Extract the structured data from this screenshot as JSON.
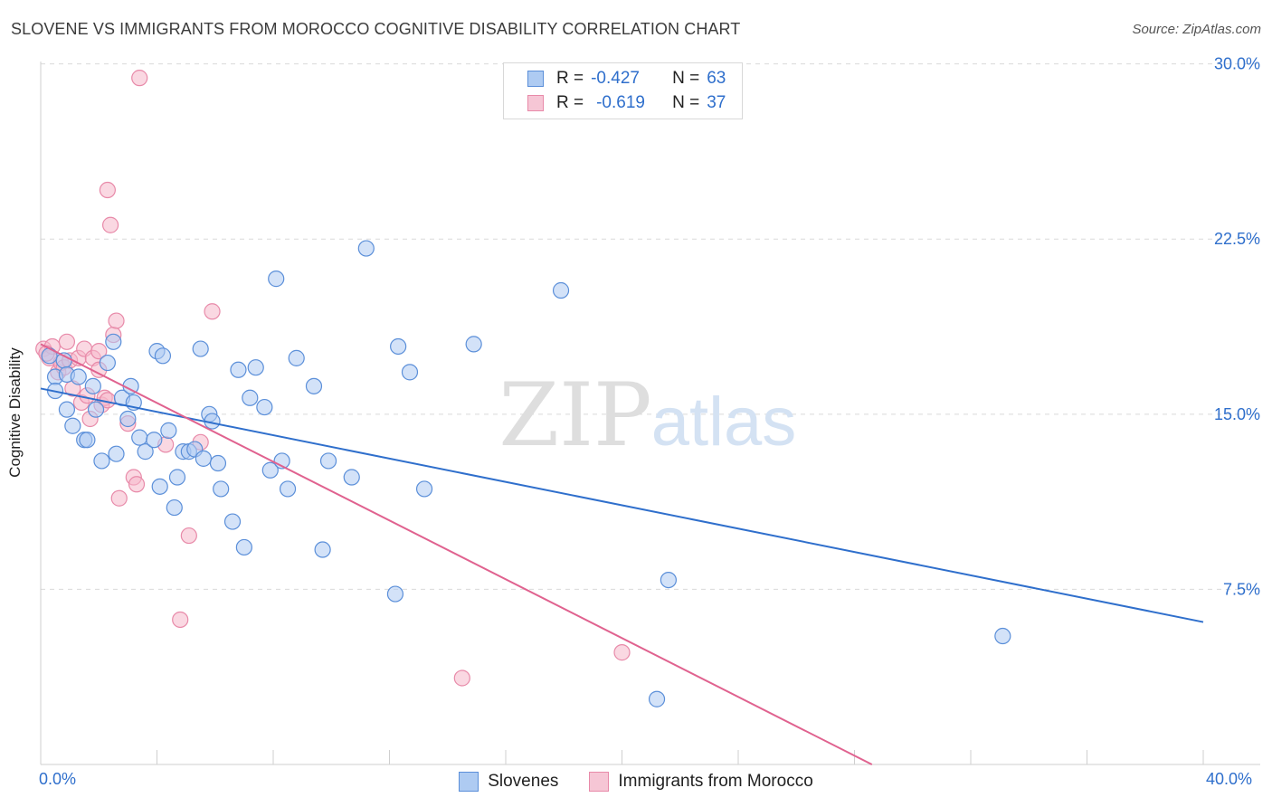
{
  "title": "SLOVENE VS IMMIGRANTS FROM MOROCCO COGNITIVE DISABILITY CORRELATION CHART",
  "source": "Source: ZipAtlas.com",
  "watermark": {
    "zip": "ZIP",
    "atlas": "atlas"
  },
  "colors": {
    "blue": "#2f6fcc",
    "blue_fill": "#aecbf2",
    "blue_stroke": "#5b8fd9",
    "pink": "#e0628f",
    "pink_fill": "#f6b8cb",
    "pink_stroke": "#e88aa9",
    "grid": "#d9d9d9",
    "axis_text": "#2f6fcc"
  },
  "legend": {
    "rows": [
      {
        "r_label": "R =",
        "r_value": "-0.427",
        "n_label": "N =",
        "n_value": "63",
        "series": "blue"
      },
      {
        "r_label": "R =",
        "r_value": "-0.619",
        "n_label": "N =",
        "n_value": "37",
        "series": "pink"
      }
    ]
  },
  "bottom_legend": [
    "Slovenes",
    "Immigrants from Morocco"
  ],
  "chart_data": {
    "type": "scatter",
    "title": "SLOVENE VS IMMIGRANTS FROM MOROCCO COGNITIVE DISABILITY CORRELATION CHART",
    "xlabel": "",
    "ylabel": "Cognitive Disability",
    "xlim": [
      0,
      40
    ],
    "ylim": [
      0,
      30.8
    ],
    "x_tick_labels": [
      "0.0%",
      "40.0%"
    ],
    "y_ticks": [
      7.5,
      15.0,
      22.5,
      30.0
    ],
    "y_tick_labels": [
      "7.5%",
      "15.0%",
      "22.5%",
      "30.0%"
    ],
    "grid": "horizontal dashed",
    "legend_placement": "top-center",
    "series": [
      {
        "name": "Slovenes",
        "color": "blue",
        "trend": {
          "x": [
            0,
            40
          ],
          "y": [
            16.1,
            6.1
          ]
        },
        "points": [
          [
            0.3,
            17.5
          ],
          [
            0.5,
            16.6
          ],
          [
            0.5,
            16.0
          ],
          [
            0.8,
            17.3
          ],
          [
            0.9,
            16.7
          ],
          [
            0.9,
            15.2
          ],
          [
            1.1,
            14.5
          ],
          [
            1.3,
            16.6
          ],
          [
            1.5,
            13.9
          ],
          [
            1.6,
            13.9
          ],
          [
            1.8,
            16.2
          ],
          [
            1.9,
            15.2
          ],
          [
            2.1,
            13.0
          ],
          [
            2.3,
            17.2
          ],
          [
            2.5,
            18.1
          ],
          [
            2.6,
            13.3
          ],
          [
            2.8,
            15.7
          ],
          [
            3.0,
            14.8
          ],
          [
            3.1,
            16.2
          ],
          [
            3.2,
            15.5
          ],
          [
            3.4,
            14.0
          ],
          [
            3.6,
            13.4
          ],
          [
            3.9,
            13.9
          ],
          [
            4.0,
            17.7
          ],
          [
            4.1,
            11.9
          ],
          [
            4.2,
            17.5
          ],
          [
            4.4,
            14.3
          ],
          [
            4.6,
            11.0
          ],
          [
            4.7,
            12.3
          ],
          [
            4.9,
            13.4
          ],
          [
            5.1,
            13.4
          ],
          [
            5.3,
            13.5
          ],
          [
            5.5,
            17.8
          ],
          [
            5.6,
            13.1
          ],
          [
            5.8,
            15.0
          ],
          [
            5.9,
            14.7
          ],
          [
            6.1,
            12.9
          ],
          [
            6.2,
            11.8
          ],
          [
            6.6,
            10.4
          ],
          [
            6.8,
            16.9
          ],
          [
            7.0,
            9.3
          ],
          [
            7.2,
            15.7
          ],
          [
            7.4,
            17.0
          ],
          [
            7.7,
            15.3
          ],
          [
            7.9,
            12.6
          ],
          [
            8.1,
            20.8
          ],
          [
            8.3,
            13.0
          ],
          [
            8.5,
            11.8
          ],
          [
            8.8,
            17.4
          ],
          [
            9.4,
            16.2
          ],
          [
            9.7,
            9.2
          ],
          [
            9.9,
            13.0
          ],
          [
            10.7,
            12.3
          ],
          [
            11.2,
            22.1
          ],
          [
            12.2,
            7.3
          ],
          [
            12.3,
            17.9
          ],
          [
            12.7,
            16.8
          ],
          [
            13.2,
            11.8
          ],
          [
            14.9,
            18.0
          ],
          [
            17.9,
            20.3
          ],
          [
            21.2,
            2.8
          ],
          [
            21.6,
            7.9
          ],
          [
            33.1,
            5.5
          ]
        ]
      },
      {
        "name": "Immigrants from Morocco",
        "color": "pink",
        "trend": {
          "x": [
            0,
            28.6
          ],
          "y": [
            18.0,
            0
          ]
        },
        "points": [
          [
            0.1,
            17.8
          ],
          [
            0.3,
            17.4
          ],
          [
            0.4,
            17.9
          ],
          [
            0.6,
            16.8
          ],
          [
            0.7,
            17.2
          ],
          [
            0.8,
            17.0
          ],
          [
            0.9,
            18.1
          ],
          [
            1.0,
            17.3
          ],
          [
            1.1,
            16.1
          ],
          [
            1.3,
            17.4
          ],
          [
            1.4,
            15.5
          ],
          [
            1.5,
            17.8
          ],
          [
            1.6,
            15.8
          ],
          [
            1.7,
            14.8
          ],
          [
            1.8,
            17.4
          ],
          [
            2.0,
            17.7
          ],
          [
            2.0,
            16.9
          ],
          [
            2.1,
            15.4
          ],
          [
            2.2,
            15.7
          ],
          [
            2.3,
            15.6
          ],
          [
            2.4,
            23.1
          ],
          [
            2.3,
            24.6
          ],
          [
            2.5,
            18.4
          ],
          [
            2.6,
            19.0
          ],
          [
            2.7,
            11.4
          ],
          [
            3.0,
            14.6
          ],
          [
            3.2,
            12.3
          ],
          [
            3.3,
            12.0
          ],
          [
            3.4,
            29.4
          ],
          [
            4.3,
            13.7
          ],
          [
            4.8,
            6.2
          ],
          [
            5.1,
            9.8
          ],
          [
            5.5,
            13.8
          ],
          [
            5.9,
            19.4
          ],
          [
            14.5,
            3.7
          ],
          [
            20.0,
            4.8
          ],
          [
            0.2,
            17.6
          ]
        ]
      }
    ]
  }
}
